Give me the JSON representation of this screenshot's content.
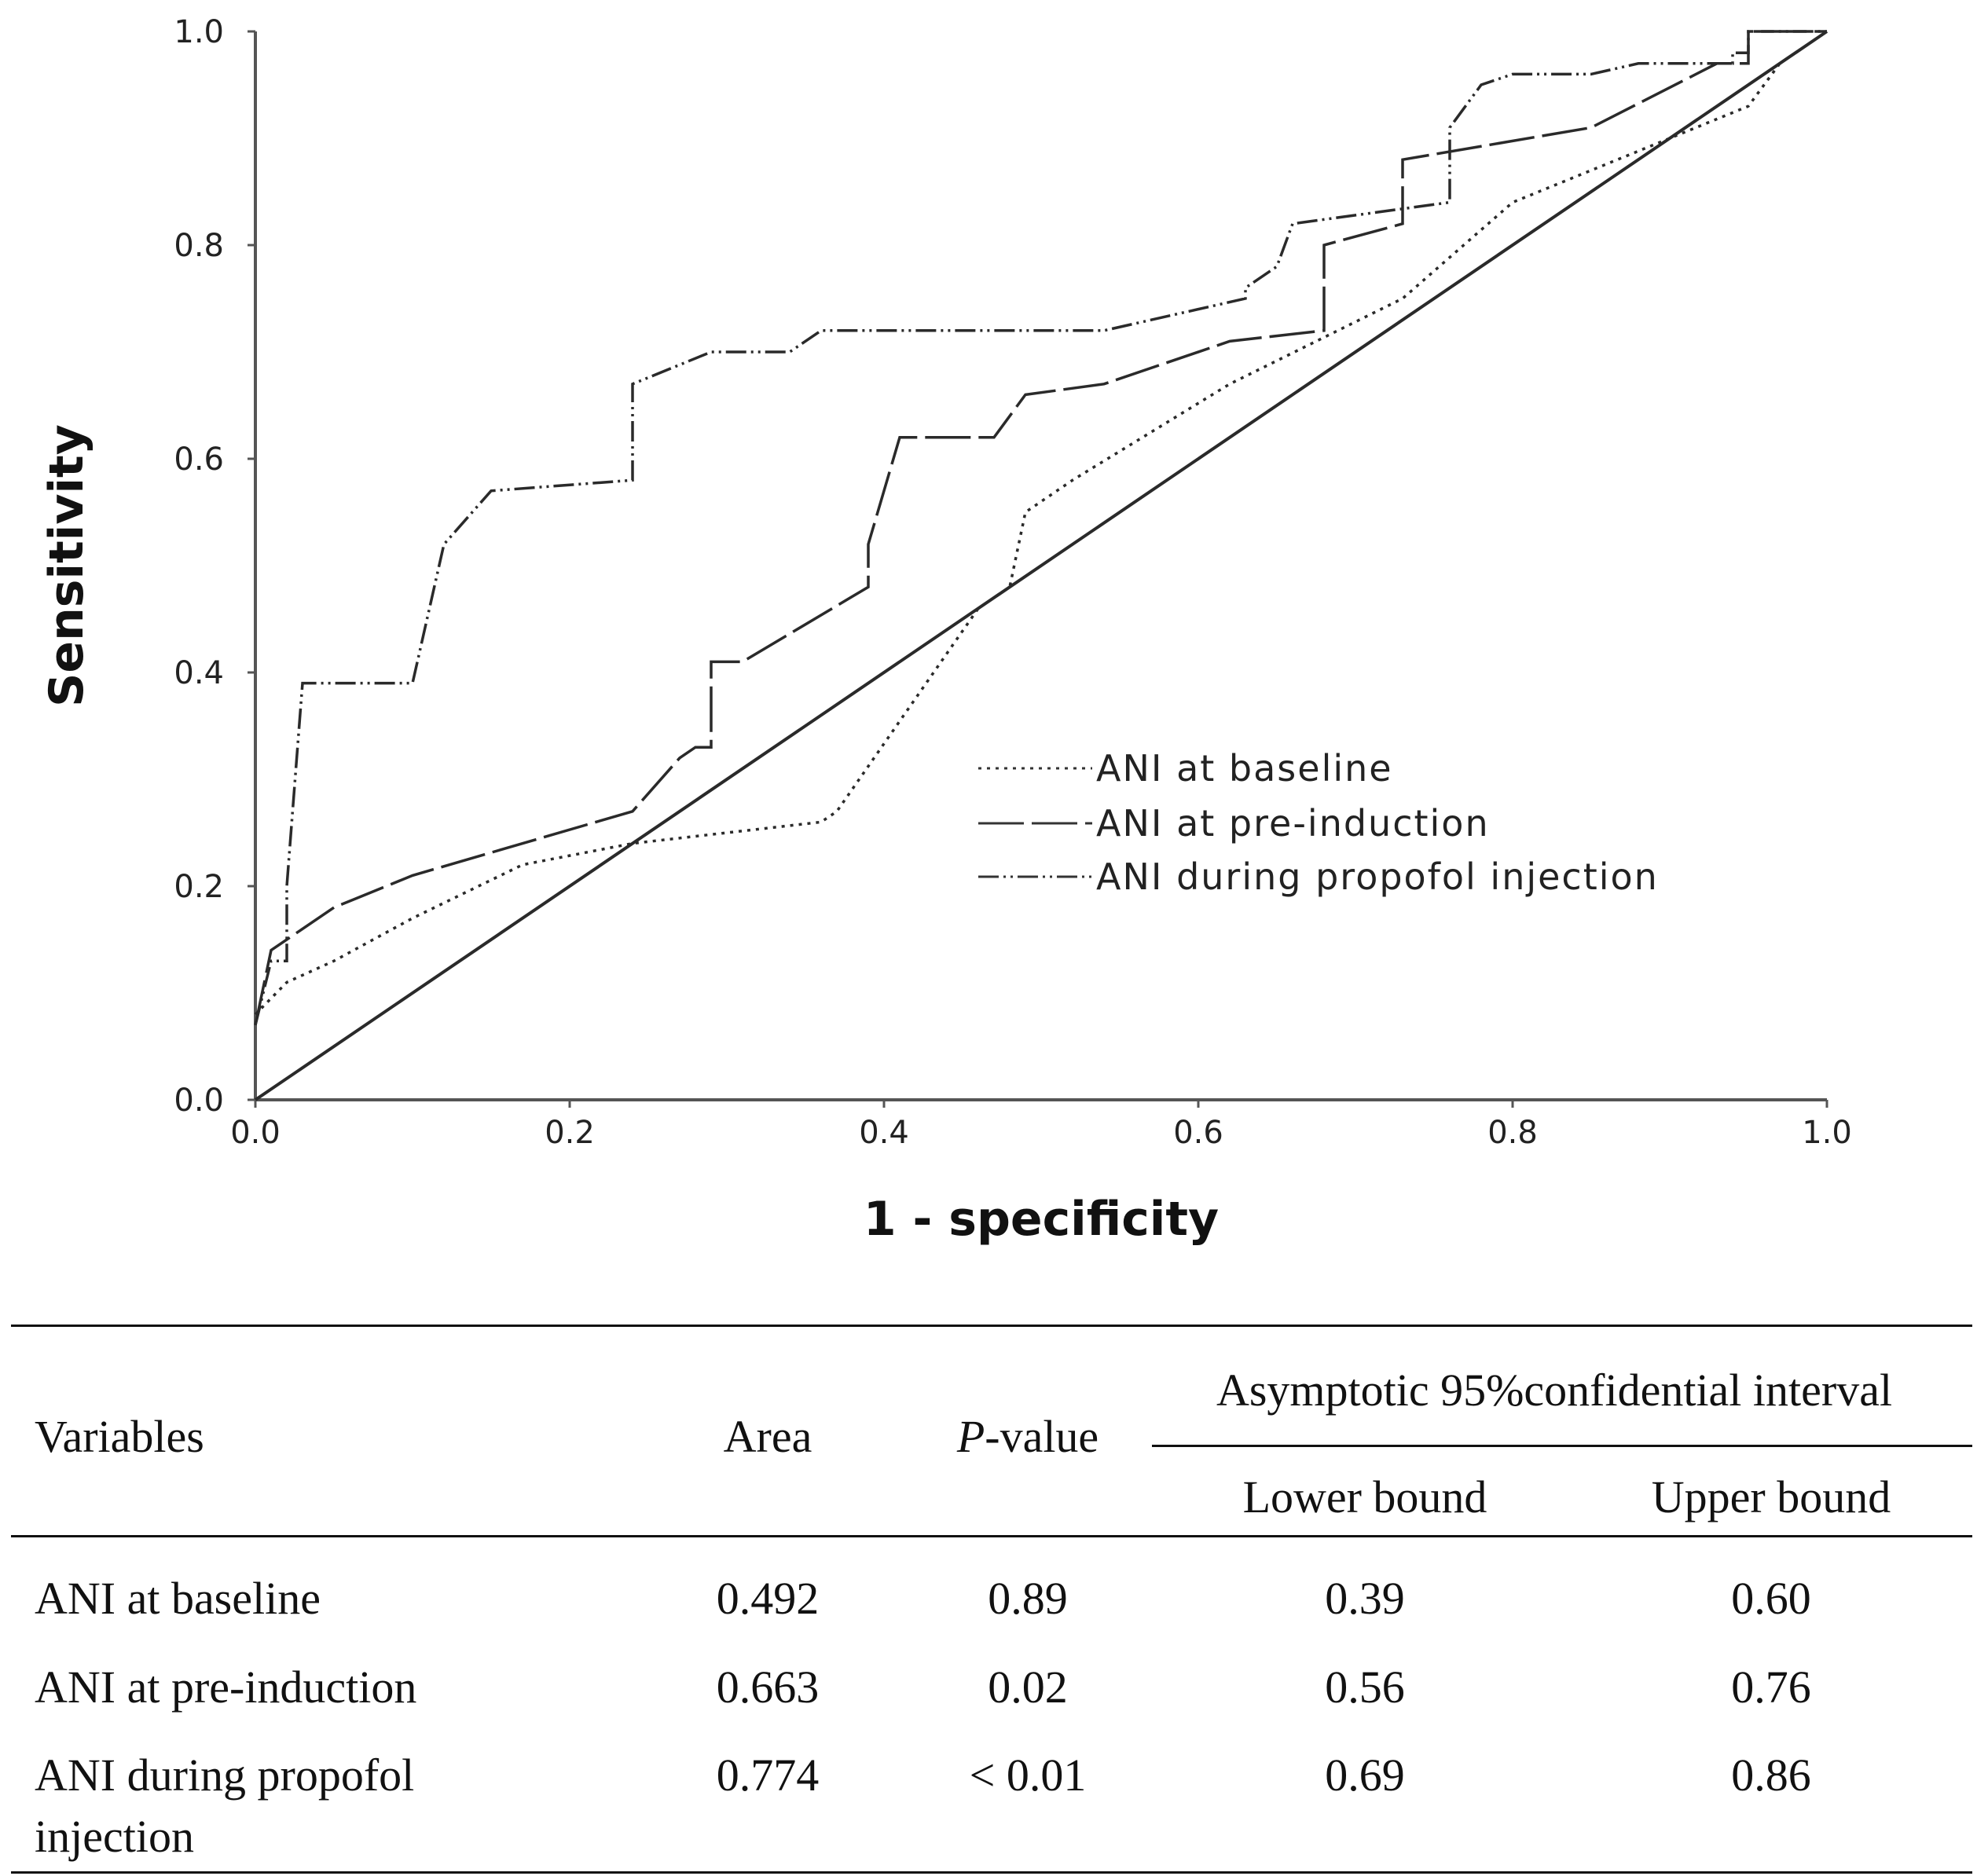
{
  "chart_data": {
    "type": "line",
    "xlabel": "1 - specificity",
    "ylabel": "Sensitivity",
    "xlim": [
      0,
      1
    ],
    "ylim": [
      0,
      1
    ],
    "x_ticks": [
      "0.0",
      "0.2",
      "0.4",
      "0.6",
      "0.8",
      "1.0"
    ],
    "y_ticks": [
      "0.0",
      "0.2",
      "0.4",
      "0.6",
      "0.8",
      "1.0"
    ],
    "legend_position": "center-right",
    "series": [
      {
        "name": "ANI  at baseline",
        "style": "dotted",
        "points": [
          [
            0,
            0.08
          ],
          [
            0.02,
            0.11
          ],
          [
            0.05,
            0.13
          ],
          [
            0.1,
            0.17
          ],
          [
            0.17,
            0.22
          ],
          [
            0.24,
            0.24
          ],
          [
            0.36,
            0.26
          ],
          [
            0.37,
            0.27
          ],
          [
            0.46,
            0.46
          ],
          [
            0.48,
            0.48
          ],
          [
            0.49,
            0.55
          ],
          [
            0.52,
            0.58
          ],
          [
            0.62,
            0.67
          ],
          [
            0.73,
            0.75
          ],
          [
            0.8,
            0.84
          ],
          [
            0.9,
            0.9
          ],
          [
            0.95,
            0.93
          ],
          [
            0.97,
            0.97
          ],
          [
            1,
            1
          ]
        ]
      },
      {
        "name": "ANI  at pre-induction",
        "style": "long-dash",
        "points": [
          [
            0,
            0.07
          ],
          [
            0.01,
            0.14
          ],
          [
            0.05,
            0.18
          ],
          [
            0.1,
            0.21
          ],
          [
            0.24,
            0.27
          ],
          [
            0.27,
            0.32
          ],
          [
            0.28,
            0.33
          ],
          [
            0.29,
            0.33
          ],
          [
            0.29,
            0.41
          ],
          [
            0.31,
            0.41
          ],
          [
            0.39,
            0.48
          ],
          [
            0.39,
            0.52
          ],
          [
            0.41,
            0.62
          ],
          [
            0.47,
            0.62
          ],
          [
            0.49,
            0.66
          ],
          [
            0.54,
            0.67
          ],
          [
            0.62,
            0.71
          ],
          [
            0.68,
            0.72
          ],
          [
            0.68,
            0.8
          ],
          [
            0.73,
            0.82
          ],
          [
            0.73,
            0.88
          ],
          [
            0.85,
            0.91
          ],
          [
            0.93,
            0.97
          ],
          [
            0.95,
            0.97
          ],
          [
            0.95,
            1.0
          ],
          [
            1,
            1
          ]
        ]
      },
      {
        "name": "ANI  during propofol  injection",
        "style": "dash-dot-dot",
        "points": [
          [
            0,
            0.07
          ],
          [
            0.01,
            0.13
          ],
          [
            0.02,
            0.13
          ],
          [
            0.02,
            0.2
          ],
          [
            0.03,
            0.39
          ],
          [
            0.1,
            0.39
          ],
          [
            0.12,
            0.52
          ],
          [
            0.15,
            0.57
          ],
          [
            0.24,
            0.58
          ],
          [
            0.24,
            0.67
          ],
          [
            0.29,
            0.7
          ],
          [
            0.34,
            0.7
          ],
          [
            0.36,
            0.72
          ],
          [
            0.54,
            0.72
          ],
          [
            0.63,
            0.75
          ],
          [
            0.63,
            0.76
          ],
          [
            0.65,
            0.78
          ],
          [
            0.66,
            0.82
          ],
          [
            0.76,
            0.84
          ],
          [
            0.76,
            0.91
          ],
          [
            0.78,
            0.95
          ],
          [
            0.8,
            0.96
          ],
          [
            0.85,
            0.96
          ],
          [
            0.88,
            0.97
          ],
          [
            0.94,
            0.97
          ],
          [
            0.94,
            0.98
          ],
          [
            0.95,
            0.98
          ],
          [
            0.95,
            1.0
          ],
          [
            1,
            1
          ]
        ]
      },
      {
        "name": "reference",
        "style": "solid",
        "points": [
          [
            0,
            0
          ],
          [
            1,
            1
          ]
        ]
      }
    ]
  },
  "table": {
    "headers": {
      "variables": "Variables",
      "area": "Area",
      "p_italic": "P",
      "p_rest": "-value",
      "ci_group": "Asymptotic 95%confidential interval",
      "lower": "Lower bound",
      "upper": "Upper bound"
    },
    "rows": [
      {
        "variable": "ANI at baseline",
        "variable_line2": "",
        "area": "0.492",
        "p": "0.89",
        "lower": "0.39",
        "upper": "0.60"
      },
      {
        "variable": "ANI at pre-induction",
        "variable_line2": "",
        "area": "0.663",
        "p": "0.02",
        "lower": "0.56",
        "upper": "0.76"
      },
      {
        "variable": "ANI during propofol",
        "variable_line2": "injection",
        "area": "0.774",
        "p": "< 0.01",
        "lower": "0.69",
        "upper": "0.86"
      }
    ]
  }
}
